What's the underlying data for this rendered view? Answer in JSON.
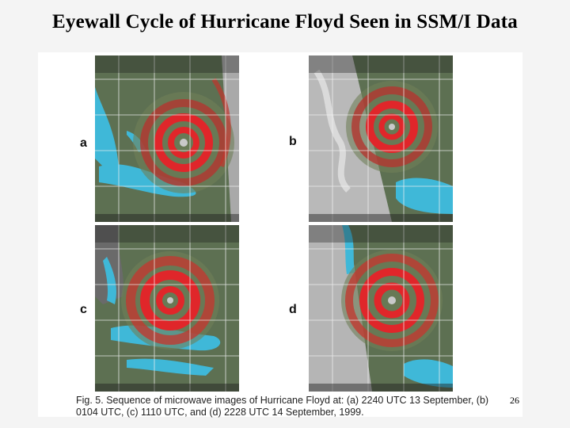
{
  "slide": {
    "title": "Eyewall Cycle of Hurricane Floyd Seen in SSM/I Data",
    "slide_number": "26"
  },
  "figure": {
    "caption": "Fig. 5.  Sequence of microwave images of Hurricane Floyd at: (a) 2240 UTC 13 September, (b) 0104 UTC, (c) 1110 UTC, and (d) 2228 UTC 14 September, 1999.",
    "panels": [
      {
        "letter": "a"
      },
      {
        "letter": "b"
      },
      {
        "letter": "c"
      },
      {
        "letter": "d"
      }
    ]
  },
  "colors": {
    "ocean_cyan": "#3fb8d8",
    "land_dark": "#4f6246",
    "rain_red": "#e0262a",
    "grid_line": "#f2f2f2",
    "cloud_gray": "#b9b9b9"
  }
}
